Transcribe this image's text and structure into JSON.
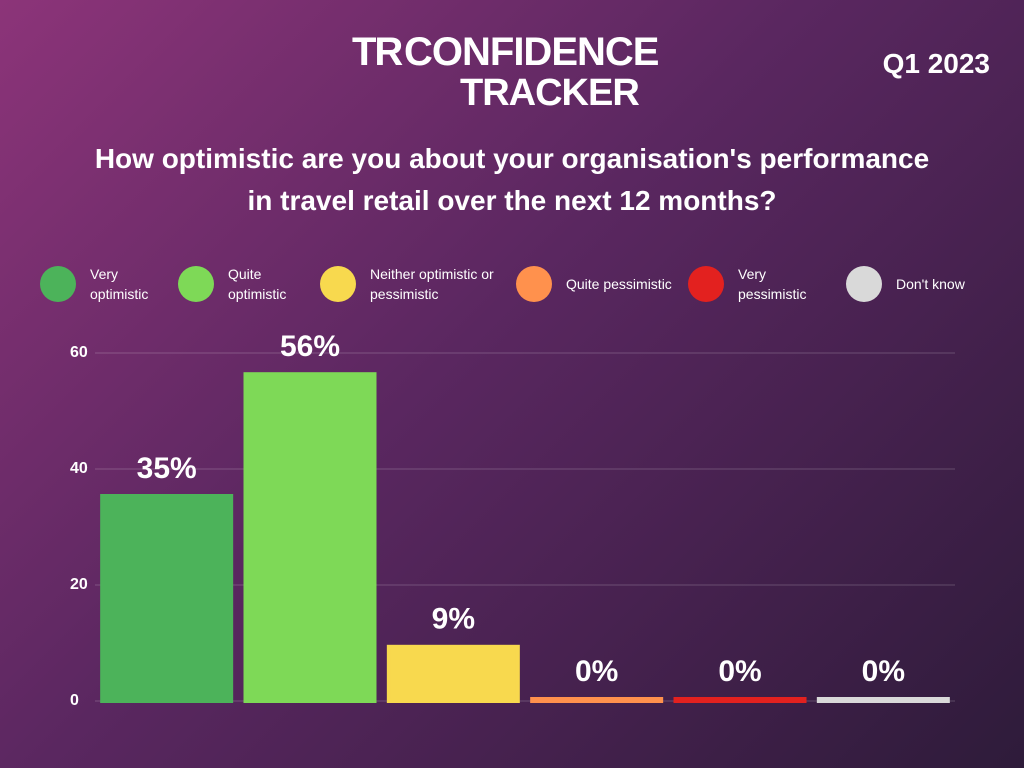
{
  "header": {
    "logo_left": "TR",
    "logo_top": "CONFIDENCE",
    "logo_bottom": "TRACKER",
    "period": "Q1 2023"
  },
  "chart_data": {
    "type": "bar",
    "title": "How optimistic are you about your organisation's performance in travel retail over the next 12 months?",
    "categories": [
      "Very optimistic",
      "Quite optimistic",
      "Neither optimistic or pessimistic",
      "Quite pessimistic",
      "Very pessimistic",
      "Don't know"
    ],
    "values": [
      35,
      56,
      9,
      0,
      0,
      0
    ],
    "value_labels": [
      "35%",
      "56%",
      "9%",
      "0%",
      "0%",
      "0%"
    ],
    "colors": [
      "#4cb35a",
      "#7ed957",
      "#f8d94e",
      "#ff914d",
      "#e3211f",
      "#d9d9d9"
    ],
    "ylim": [
      0,
      60
    ],
    "yticks": [
      0,
      20,
      40,
      60
    ],
    "grid": true
  }
}
